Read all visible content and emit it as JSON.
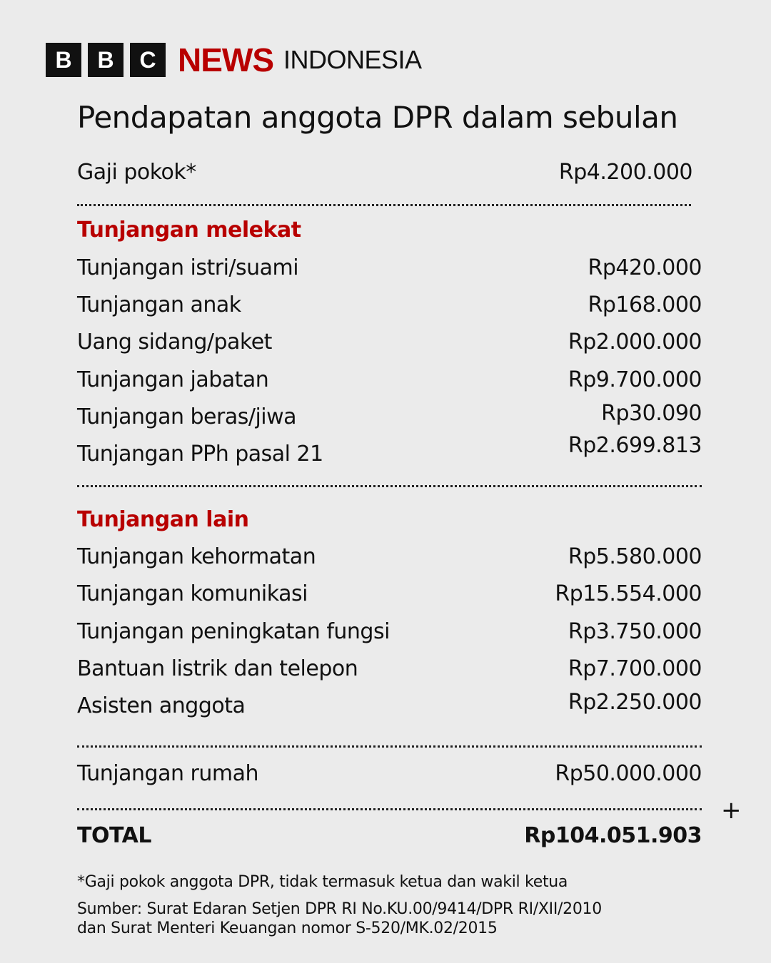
{
  "brand": {
    "letters": [
      "B",
      "B",
      "C"
    ],
    "news": "NEWS",
    "region": "INDONESIA",
    "accent": "#b80000"
  },
  "title": "Pendapatan anggota DPR dalam sebulan",
  "base": {
    "label": "Gaji pokok*",
    "value": "Rp4.200.000"
  },
  "sections": [
    {
      "heading": "Tunjangan melekat",
      "items": [
        {
          "label": "Tunjangan istri/suami",
          "value": "Rp420.000"
        },
        {
          "label": "Tunjangan anak",
          "value": "Rp168.000"
        },
        {
          "label": "Uang sidang/paket",
          "value": "Rp2.000.000"
        },
        {
          "label": "Tunjangan jabatan",
          "value": "Rp9.700.000"
        },
        {
          "label": "Tunjangan beras/jiwa",
          "value": "Rp30.090"
        },
        {
          "label": "Tunjangan PPh pasal 21",
          "value": "Rp2.699.813"
        }
      ]
    },
    {
      "heading": "Tunjangan lain",
      "items": [
        {
          "label": "Tunjangan kehormatan",
          "value": "Rp5.580.000"
        },
        {
          "label": "Tunjangan komunikasi",
          "value": "Rp15.554.000"
        },
        {
          "label": "Tunjangan peningkatan fungsi",
          "value": "Rp3.750.000"
        },
        {
          "label": "Bantuan listrik dan telepon",
          "value": "Rp7.700.000"
        },
        {
          "label": "Asisten anggota",
          "value": "Rp2.250.000"
        }
      ]
    }
  ],
  "housing": {
    "label": "Tunjangan rumah",
    "value": "Rp50.000.000"
  },
  "plus": "+",
  "total": {
    "label": "TOTAL",
    "value": "Rp104.051.903"
  },
  "footnote": "*Gaji pokok anggota DPR, tidak termasuk ketua dan wakil ketua",
  "source": [
    "Sumber: Surat Edaran Setjen DPR RI No.KU.00/9414/DPR RI/XII/2010",
    "dan Surat Menteri Keuangan nomor S-520/MK.02/2015"
  ]
}
